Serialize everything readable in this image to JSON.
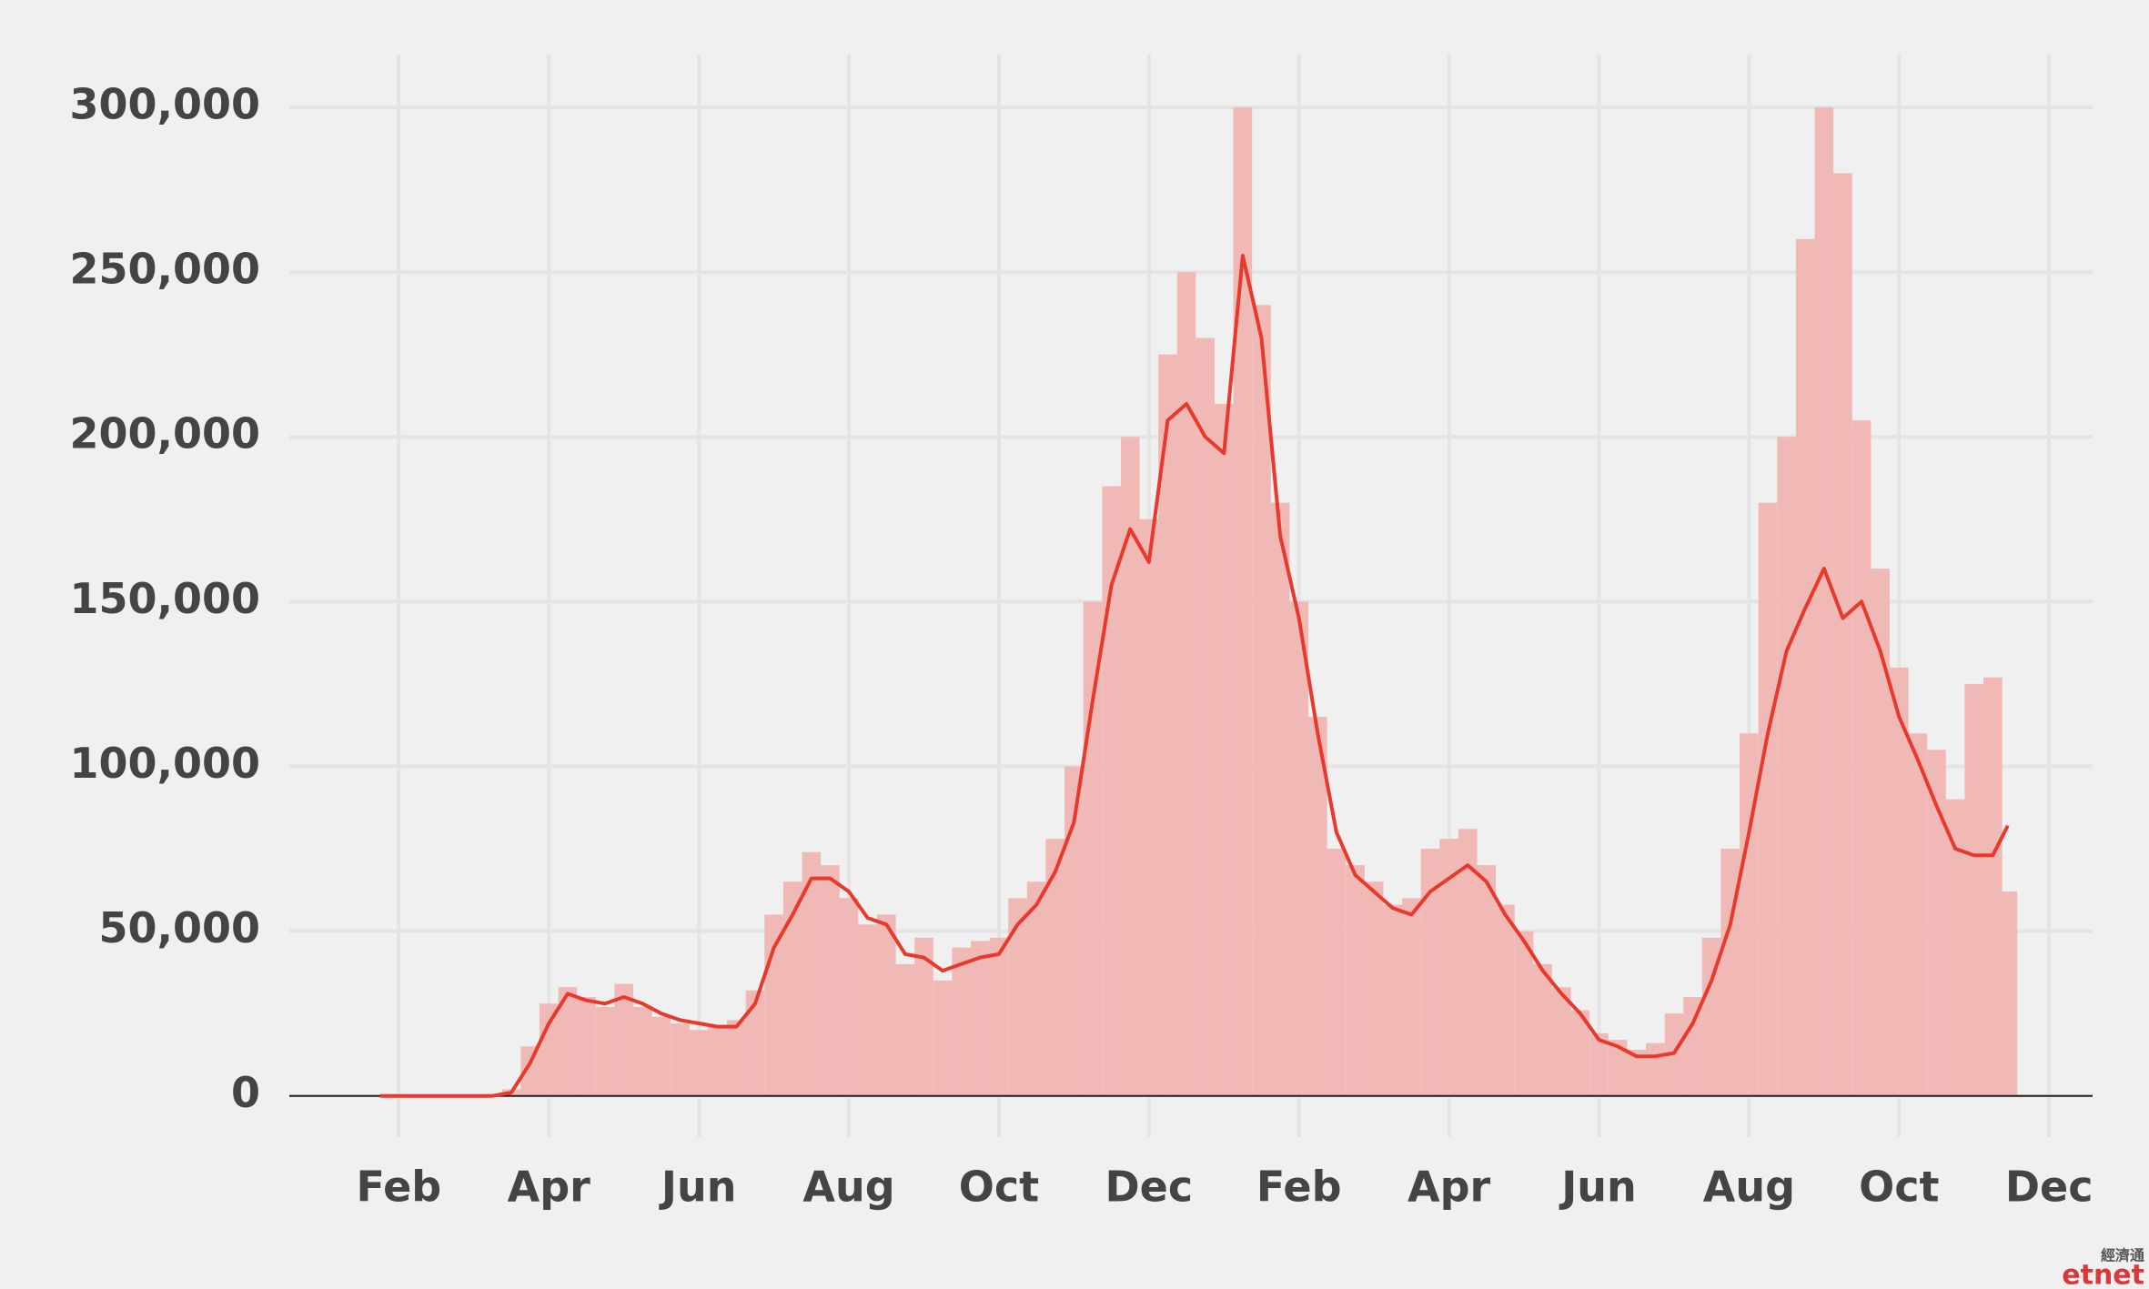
{
  "chart_data": {
    "type": "combo",
    "x": [
      0.75,
      1.0,
      1.25,
      1.5,
      1.75,
      2.0,
      2.25,
      2.5,
      2.75,
      3.0,
      3.25,
      3.5,
      3.75,
      4.0,
      4.25,
      4.5,
      4.75,
      5.0,
      5.25,
      5.5,
      5.75,
      6.0,
      6.25,
      6.5,
      6.75,
      7.0,
      7.25,
      7.5,
      7.75,
      8.0,
      8.25,
      8.5,
      8.75,
      9.0,
      9.25,
      9.5,
      9.75,
      10.0,
      10.25,
      10.5,
      10.75,
      11.0,
      11.25,
      11.5,
      11.75,
      12.0,
      12.25,
      12.5,
      12.75,
      13.0,
      13.25,
      13.5,
      13.75,
      14.0,
      14.25,
      14.5,
      14.75,
      15.0,
      15.25,
      15.5,
      15.75,
      16.0,
      16.25,
      16.5,
      16.75,
      17.0,
      17.25,
      17.5,
      17.75,
      18.0,
      18.25,
      18.5,
      18.75,
      19.0,
      19.25,
      19.5,
      19.75,
      20.0,
      20.25,
      20.5,
      20.75,
      21.0,
      21.25,
      21.5,
      21.75,
      22.0,
      22.25,
      22.45
    ],
    "series": [
      {
        "type": "bar",
        "color": "#f0b9b5",
        "values": [
          0,
          0,
          0,
          0,
          0,
          0,
          0,
          2000,
          15000,
          28000,
          33000,
          30000,
          27000,
          34000,
          27000,
          24000,
          22000,
          20000,
          21000,
          23000,
          32000,
          55000,
          65000,
          74000,
          70000,
          60000,
          52000,
          55000,
          40000,
          48000,
          35000,
          45000,
          47000,
          48000,
          60000,
          65000,
          78000,
          100000,
          150000,
          185000,
          200000,
          175000,
          225000,
          250000,
          230000,
          210000,
          300000,
          240000,
          180000,
          150000,
          115000,
          75000,
          70000,
          65000,
          58000,
          60000,
          75000,
          78000,
          81000,
          70000,
          58000,
          50000,
          40000,
          33000,
          26000,
          19000,
          17000,
          14000,
          16000,
          25000,
          30000,
          48000,
          75000,
          110000,
          180000,
          200000,
          260000,
          300000,
          280000,
          205000,
          160000,
          130000,
          110000,
          105000,
          90000,
          125000,
          127000,
          62000
        ]
      },
      {
        "type": "line",
        "color": "#e8392c",
        "values": [
          0,
          0,
          0,
          0,
          0,
          0,
          0,
          1000,
          10000,
          22000,
          31000,
          29000,
          28000,
          30000,
          28000,
          25000,
          23000,
          22000,
          21000,
          21000,
          28000,
          45000,
          55000,
          66000,
          66000,
          62000,
          54000,
          52000,
          43000,
          42000,
          38000,
          40000,
          42000,
          43000,
          52000,
          58000,
          68000,
          83000,
          120000,
          155000,
          172000,
          162000,
          205000,
          210000,
          200000,
          195000,
          255000,
          230000,
          170000,
          145000,
          110000,
          80000,
          67000,
          62000,
          57000,
          55000,
          62000,
          66000,
          70000,
          65000,
          55000,
          47000,
          38000,
          31000,
          25000,
          17000,
          15000,
          12000,
          12000,
          13000,
          22000,
          35000,
          52000,
          80000,
          110000,
          135000,
          148000,
          160000,
          145000,
          150000,
          135000,
          115000,
          102000,
          88000,
          75000,
          73000,
          73000,
          82000
        ]
      }
    ],
    "xlim": [
      -0.46,
      23.58
    ],
    "xticks": [
      {
        "value": 1,
        "label": "Feb"
      },
      {
        "value": 3,
        "label": "Apr"
      },
      {
        "value": 5,
        "label": "Jun"
      },
      {
        "value": 7,
        "label": "Aug"
      },
      {
        "value": 9,
        "label": "Oct"
      },
      {
        "value": 11,
        "label": "Dec"
      },
      {
        "value": 13,
        "label": "Feb"
      },
      {
        "value": 15,
        "label": "Apr"
      },
      {
        "value": 17,
        "label": "Jun"
      },
      {
        "value": 19,
        "label": "Aug"
      },
      {
        "value": 21,
        "label": "Oct"
      },
      {
        "value": 23,
        "label": "Dec"
      }
    ],
    "ylim": [
      -12500,
      316000
    ],
    "yticks": [
      0,
      {
        "value": 50000,
        "label": "50,000"
      },
      {
        "value": 100000,
        "label": "100,000"
      },
      {
        "value": 150000,
        "label": "150,000"
      },
      {
        "value": 200000,
        "label": "200,000"
      },
      {
        "value": 250000,
        "label": "250,000"
      },
      {
        "value": 300000,
        "label": "300,000"
      }
    ],
    "grid": true,
    "watermark": {
      "top": "經濟通",
      "bottom": "etnet"
    }
  }
}
